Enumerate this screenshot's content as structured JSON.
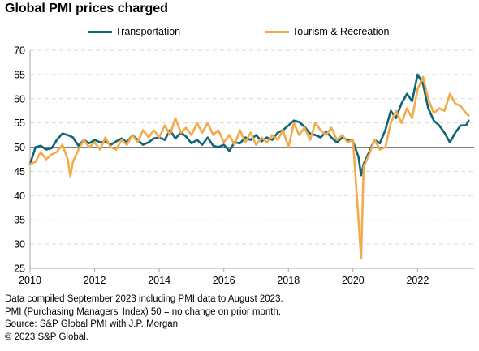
{
  "title": "Global PMI prices charged",
  "colors": {
    "transportation": "#0f6477",
    "tourism": "#f2ab48",
    "grid": "#d9d9d9",
    "axis": "#a6a6a6"
  },
  "notes": [
    "Data compiled September 2023 including PMI data to August 2023.",
    "PMI (Purchasing Managers' Index) 50 = no change on prior month.",
    "Source: S&P Global PMI with J.P. Morgan",
    "© 2023 S&P Global."
  ],
  "chart_data": {
    "type": "line",
    "title": "Global PMI prices charged",
    "xlabel": "",
    "ylabel": "",
    "ylim": [
      25,
      70
    ],
    "yticks": [
      25,
      30,
      35,
      40,
      45,
      50,
      55,
      60,
      65,
      70
    ],
    "xlim": [
      2010,
      2023.75
    ],
    "xticks": [
      2010,
      2012,
      2014,
      2016,
      2018,
      2020,
      2022
    ],
    "xtick_labels": [
      "2010",
      "2012",
      "2014",
      "2016",
      "2018",
      "2020",
      "2022"
    ],
    "reference_line": 50,
    "grid": "horizontal dashed",
    "legend_position": "top",
    "series": [
      {
        "name": "Transportation",
        "color": "#0f6477",
        "x": [
          2010.0,
          2010.17,
          2010.33,
          2010.5,
          2010.67,
          2010.83,
          2011.0,
          2011.17,
          2011.33,
          2011.5,
          2011.67,
          2011.83,
          2012.0,
          2012.17,
          2012.33,
          2012.5,
          2012.67,
          2012.83,
          2013.0,
          2013.17,
          2013.33,
          2013.5,
          2013.67,
          2013.83,
          2014.0,
          2014.17,
          2014.33,
          2014.5,
          2014.67,
          2014.83,
          2015.0,
          2015.17,
          2015.33,
          2015.5,
          2015.67,
          2015.83,
          2016.0,
          2016.17,
          2016.33,
          2016.5,
          2016.67,
          2016.83,
          2017.0,
          2017.17,
          2017.33,
          2017.5,
          2017.67,
          2017.83,
          2018.0,
          2018.17,
          2018.33,
          2018.5,
          2018.67,
          2018.83,
          2019.0,
          2019.17,
          2019.33,
          2019.5,
          2019.67,
          2019.83,
          2020.0,
          2020.17,
          2020.25,
          2020.33,
          2020.5,
          2020.67,
          2020.83,
          2021.0,
          2021.17,
          2021.33,
          2021.5,
          2021.67,
          2021.83,
          2022.0,
          2022.17,
          2022.33,
          2022.5,
          2022.67,
          2022.83,
          2023.0,
          2023.17,
          2023.33,
          2023.5,
          2023.58
        ],
        "y": [
          46.5,
          50.0,
          50.3,
          49.5,
          49.8,
          51.5,
          52.8,
          52.5,
          52.0,
          50.3,
          51.5,
          50.8,
          51.5,
          51.0,
          51.2,
          50.5,
          51.2,
          51.8,
          51.0,
          52.5,
          51.5,
          50.5,
          51.0,
          51.8,
          52.0,
          51.5,
          53.5,
          51.8,
          53.0,
          52.2,
          50.8,
          51.5,
          50.5,
          52.0,
          50.3,
          50.0,
          50.5,
          49.2,
          51.0,
          50.8,
          52.0,
          51.5,
          52.5,
          51.2,
          52.0,
          51.5,
          53.0,
          53.5,
          54.5,
          55.5,
          55.2,
          54.2,
          52.8,
          52.5,
          52.0,
          53.2,
          52.0,
          51.0,
          52.0,
          51.5,
          51.2,
          48.0,
          44.2,
          46.5,
          49.0,
          51.5,
          50.8,
          53.5,
          57.5,
          56.0,
          59.0,
          61.0,
          59.5,
          65.0,
          63.0,
          58.0,
          55.5,
          54.5,
          53.0,
          51.0,
          53.0,
          54.5,
          54.5,
          55.5
        ]
      },
      {
        "name": "Tourism & Recreation",
        "color": "#f2ab48",
        "x": [
          2010.0,
          2010.17,
          2010.33,
          2010.5,
          2010.67,
          2010.83,
          2011.0,
          2011.17,
          2011.25,
          2011.33,
          2011.5,
          2011.67,
          2011.83,
          2012.0,
          2012.17,
          2012.33,
          2012.5,
          2012.67,
          2012.83,
          2013.0,
          2013.17,
          2013.33,
          2013.5,
          2013.67,
          2013.83,
          2014.0,
          2014.17,
          2014.33,
          2014.5,
          2014.67,
          2014.83,
          2015.0,
          2015.17,
          2015.33,
          2015.5,
          2015.67,
          2015.83,
          2016.0,
          2016.17,
          2016.33,
          2016.5,
          2016.67,
          2016.83,
          2017.0,
          2017.17,
          2017.33,
          2017.5,
          2017.67,
          2017.83,
          2018.0,
          2018.17,
          2018.33,
          2018.5,
          2018.67,
          2018.83,
          2019.0,
          2019.17,
          2019.33,
          2019.5,
          2019.67,
          2019.83,
          2020.0,
          2020.17,
          2020.25,
          2020.33,
          2020.5,
          2020.67,
          2020.83,
          2021.0,
          2021.17,
          2021.33,
          2021.5,
          2021.67,
          2021.83,
          2022.0,
          2022.17,
          2022.33,
          2022.5,
          2022.67,
          2022.83,
          2023.0,
          2023.17,
          2023.33,
          2023.5,
          2023.58
        ],
        "y": [
          46.5,
          47.0,
          49.0,
          47.5,
          48.5,
          49.0,
          50.5,
          47.5,
          44.0,
          47.0,
          49.5,
          51.5,
          50.0,
          51.0,
          49.5,
          52.0,
          50.0,
          49.5,
          51.5,
          50.5,
          52.5,
          51.0,
          53.5,
          52.0,
          53.5,
          52.0,
          54.5,
          52.5,
          56.0,
          53.0,
          54.0,
          52.5,
          55.0,
          53.0,
          55.0,
          52.5,
          53.5,
          51.0,
          52.5,
          50.5,
          53.5,
          51.0,
          53.0,
          50.5,
          52.0,
          51.0,
          52.5,
          51.5,
          53.5,
          50.0,
          55.0,
          52.5,
          54.0,
          51.5,
          55.0,
          53.5,
          52.5,
          54.0,
          51.5,
          52.5,
          51.0,
          51.5,
          35.0,
          27.0,
          46.0,
          48.5,
          51.5,
          49.5,
          50.0,
          55.0,
          57.5,
          55.0,
          58.0,
          56.0,
          62.0,
          64.5,
          60.0,
          57.0,
          58.0,
          57.5,
          61.0,
          59.0,
          58.5,
          57.0,
          56.5
        ]
      }
    ]
  }
}
